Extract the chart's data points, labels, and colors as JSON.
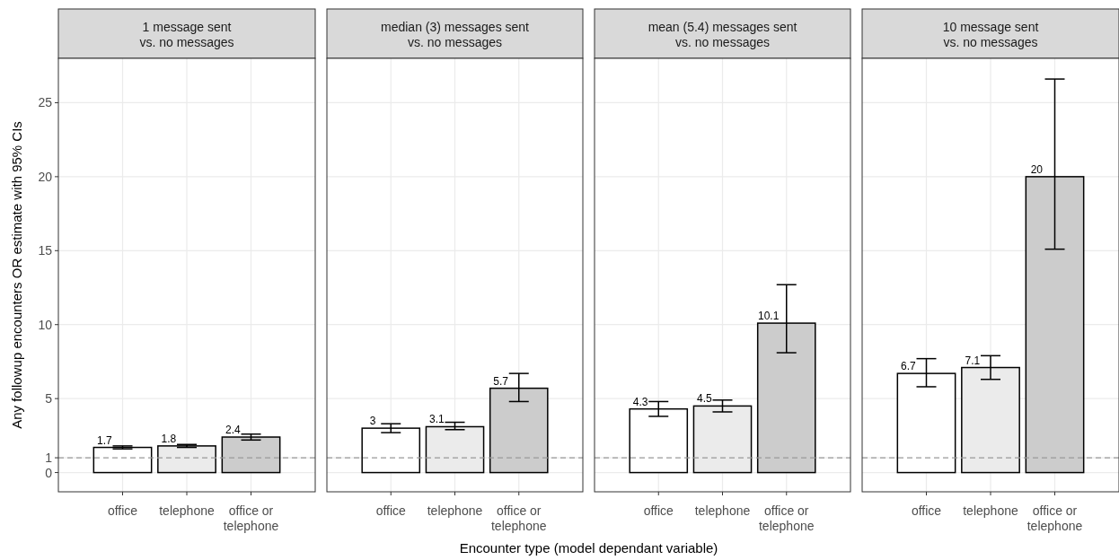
{
  "chart_data": [
    {
      "type": "bar",
      "title": "1 message sent\nvs. no messages",
      "ylabel": "Any followup encounters OR estimate with 95% CIs",
      "categories": [
        "office",
        "telephone",
        "office or\ntelephone"
      ],
      "values": [
        1.7,
        1.8,
        2.4
      ],
      "colors": [
        "#ffffff",
        "#ebebeb",
        "#cccccc"
      ],
      "errors": [
        [
          1.6,
          1.8
        ],
        [
          1.7,
          1.9
        ],
        [
          2.2,
          2.6
        ]
      ],
      "data_labels": true,
      "ylim": [
        -1.3,
        28
      ],
      "yticks": [
        0,
        1,
        5,
        10,
        15,
        20,
        25
      ],
      "grid": true,
      "ref_lines": [
        {
          "axis": "y",
          "value": 1,
          "color": "#999999",
          "line_style": "dashed"
        }
      ]
    },
    {
      "type": "bar",
      "title": "median (3) messages sent\nvs. no messages",
      "xlabel": "Encounter type (model dependant variable)",
      "categories": [
        "office",
        "telephone",
        "office or\ntelephone"
      ],
      "values": [
        3,
        3.1,
        5.7
      ],
      "colors": [
        "#ffffff",
        "#ebebeb",
        "#cccccc"
      ],
      "errors": [
        [
          2.7,
          3.3
        ],
        [
          2.9,
          3.4
        ],
        [
          4.8,
          6.7
        ]
      ],
      "data_labels": true,
      "ylim": [
        -1.3,
        28
      ],
      "yticks": [
        0,
        1,
        5,
        10,
        15,
        20,
        25
      ],
      "grid": true,
      "tick_labels": "x",
      "ref_lines": [
        {
          "axis": "y",
          "value": 1,
          "color": "#999999",
          "line_style": "dashed"
        }
      ]
    },
    {
      "type": "bar",
      "title": "mean (5.4) messages sent\nvs. no messages",
      "categories": [
        "office",
        "telephone",
        "office or\ntelephone"
      ],
      "values": [
        4.3,
        4.5,
        10.1
      ],
      "colors": [
        "#ffffff",
        "#ebebeb",
        "#cccccc"
      ],
      "errors": [
        [
          3.8,
          4.8
        ],
        [
          4.1,
          4.9
        ],
        [
          8.1,
          12.7
        ]
      ],
      "data_labels": true,
      "ylim": [
        -1.3,
        28
      ],
      "yticks": [
        0,
        1,
        5,
        10,
        15,
        20,
        25
      ],
      "grid": true,
      "tick_labels": "x",
      "ref_lines": [
        {
          "axis": "y",
          "value": 1,
          "color": "#999999",
          "line_style": "dashed"
        }
      ]
    },
    {
      "type": "bar",
      "title": "10 message sent\nvs. no messages",
      "categories": [
        "office",
        "telephone",
        "office or\ntelephone"
      ],
      "values": [
        6.7,
        7.1,
        20
      ],
      "colors": [
        "#ffffff",
        "#ebebeb",
        "#cccccc"
      ],
      "errors": [
        [
          5.8,
          7.7
        ],
        [
          6.3,
          7.9
        ],
        [
          15.1,
          26.6
        ]
      ],
      "data_labels": true,
      "ylim": [
        -1.3,
        28
      ],
      "yticks": [
        0,
        1,
        5,
        10,
        15,
        20,
        25
      ],
      "grid": true,
      "tick_labels": "x",
      "ref_lines": [
        {
          "axis": "y",
          "value": 1,
          "color": "#999999",
          "line_style": "dashed"
        }
      ]
    }
  ]
}
